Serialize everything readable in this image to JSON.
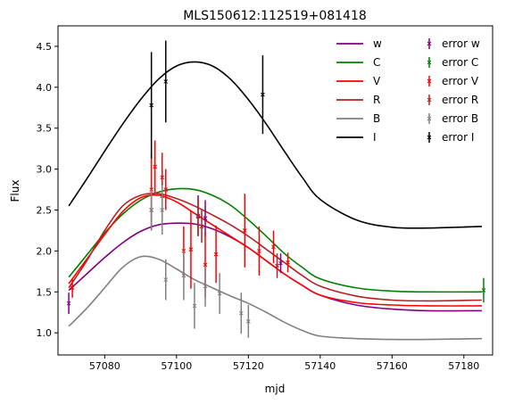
{
  "chart_data": {
    "type": "line",
    "title": "MLS150612:112519+081418",
    "xlabel": "mjd",
    "ylabel": "Flux",
    "xlim": [
      57067,
      57188
    ],
    "ylim": [
      0.73,
      4.75
    ],
    "xticks": [
      57080,
      57100,
      57120,
      57140,
      57160,
      57180
    ],
    "yticks": [
      1.0,
      1.5,
      2.0,
      2.5,
      3.0,
      3.5,
      4.0,
      4.5
    ],
    "grid": false,
    "legend_position": "top-right",
    "series": [
      {
        "name": "w",
        "color": "#800080",
        "x": [
          57070,
          57075,
          57080,
          57085,
          57090,
          57095,
          57100,
          57105,
          57110,
          57115,
          57120,
          57125,
          57130,
          57135,
          57140,
          57150,
          57160,
          57170,
          57185
        ],
        "y": [
          1.52,
          1.72,
          1.92,
          2.1,
          2.24,
          2.32,
          2.34,
          2.33,
          2.27,
          2.17,
          2.04,
          1.88,
          1.72,
          1.58,
          1.46,
          1.34,
          1.29,
          1.27,
          1.27
        ]
      },
      {
        "name": "C",
        "color": "#008000",
        "x": [
          57070,
          57075,
          57080,
          57085,
          57090,
          57095,
          57100,
          57105,
          57110,
          57115,
          57120,
          57125,
          57130,
          57135,
          57140,
          57150,
          57160,
          57170,
          57185
        ],
        "y": [
          1.68,
          1.95,
          2.22,
          2.45,
          2.62,
          2.72,
          2.76,
          2.75,
          2.68,
          2.56,
          2.38,
          2.18,
          1.97,
          1.8,
          1.66,
          1.55,
          1.51,
          1.5,
          1.5
        ]
      },
      {
        "name": "V",
        "color": "#ff0000",
        "x": [
          57070,
          57075,
          57080,
          57085,
          57090,
          57095,
          57100,
          57105,
          57110,
          57115,
          57120,
          57125,
          57130,
          57135,
          57140,
          57150,
          57160,
          57170,
          57185
        ],
        "y": [
          1.6,
          1.9,
          2.2,
          2.48,
          2.65,
          2.68,
          2.6,
          2.46,
          2.32,
          2.18,
          2.04,
          1.88,
          1.72,
          1.58,
          1.46,
          1.37,
          1.34,
          1.33,
          1.33
        ]
      },
      {
        "name": "R",
        "color": "#b22222",
        "x": [
          57070,
          57075,
          57080,
          57085,
          57090,
          57095,
          57100,
          57105,
          57110,
          57115,
          57120,
          57125,
          57130,
          57135,
          57140,
          57150,
          57160,
          57170,
          57185
        ],
        "y": [
          1.55,
          1.88,
          2.25,
          2.55,
          2.68,
          2.7,
          2.64,
          2.55,
          2.44,
          2.32,
          2.18,
          2.02,
          1.86,
          1.7,
          1.57,
          1.45,
          1.4,
          1.39,
          1.4
        ]
      },
      {
        "name": "B",
        "color": "#808080",
        "x": [
          57070,
          57075,
          57080,
          57085,
          57090,
          57095,
          57100,
          57105,
          57110,
          57115,
          57120,
          57125,
          57130,
          57135,
          57140,
          57150,
          57160,
          57170,
          57185
        ],
        "y": [
          1.08,
          1.3,
          1.55,
          1.8,
          1.93,
          1.9,
          1.78,
          1.65,
          1.55,
          1.45,
          1.36,
          1.25,
          1.13,
          1.03,
          0.96,
          0.93,
          0.92,
          0.92,
          0.93
        ]
      },
      {
        "name": "I",
        "color": "#000000",
        "x": [
          57070,
          57075,
          57080,
          57085,
          57090,
          57095,
          57100,
          57105,
          57110,
          57115,
          57120,
          57125,
          57130,
          57135,
          57140,
          57150,
          57160,
          57170,
          57185
        ],
        "y": [
          2.55,
          2.88,
          3.22,
          3.55,
          3.85,
          4.1,
          4.26,
          4.31,
          4.26,
          4.1,
          3.85,
          3.55,
          3.22,
          2.9,
          2.63,
          2.38,
          2.29,
          2.28,
          2.3
        ]
      }
    ],
    "error_series": [
      {
        "name": "error w",
        "color": "#800080",
        "x": [
          57070,
          57106,
          57108,
          57129
        ],
        "y": [
          1.36,
          2.43,
          2.4,
          1.85
        ],
        "err": [
          0.13,
          0.25,
          0.22,
          0.12
        ]
      },
      {
        "name": "error C",
        "color": "#008000",
        "x": [
          57185.5
        ],
        "y": [
          1.52
        ],
        "err": [
          0.15
        ]
      },
      {
        "name": "error V",
        "color": "#ff0000",
        "x": [
          57071,
          57093,
          57094,
          57096,
          57097,
          57102,
          57104,
          57108,
          57111,
          57119,
          57123,
          57127,
          57131
        ],
        "y": [
          1.55,
          2.75,
          3.03,
          2.9,
          2.75,
          2.0,
          2.02,
          1.83,
          1.96,
          2.25,
          2.0,
          2.05,
          1.86
        ],
        "err": [
          0.12,
          0.45,
          0.32,
          0.3,
          0.25,
          0.3,
          0.48,
          0.4,
          0.35,
          0.45,
          0.3,
          0.2,
          0.12
        ]
      },
      {
        "name": "error R",
        "color": "#b22222",
        "x": [
          57093,
          57096,
          57106,
          57107,
          57128
        ],
        "y": [
          2.5,
          2.67,
          2.42,
          2.3,
          1.82
        ],
        "err": [
          0.25,
          0.3,
          0.22,
          0.2,
          0.15
        ]
      },
      {
        "name": "error B",
        "color": "#808080",
        "x": [
          57093,
          57096,
          57097,
          57102,
          57105,
          57108,
          57112,
          57118,
          57120
        ],
        "y": [
          2.5,
          2.5,
          1.65,
          1.7,
          1.33,
          1.57,
          1.48,
          1.24,
          1.14
        ],
        "err": [
          0.25,
          0.3,
          0.25,
          0.3,
          0.28,
          0.25,
          0.25,
          0.25,
          0.2
        ]
      },
      {
        "name": "error I",
        "color": "#000000",
        "x": [
          57093,
          57097,
          57124
        ],
        "y": [
          3.78,
          4.07,
          3.91
        ],
        "err": [
          0.65,
          0.5,
          0.48
        ]
      }
    ]
  }
}
